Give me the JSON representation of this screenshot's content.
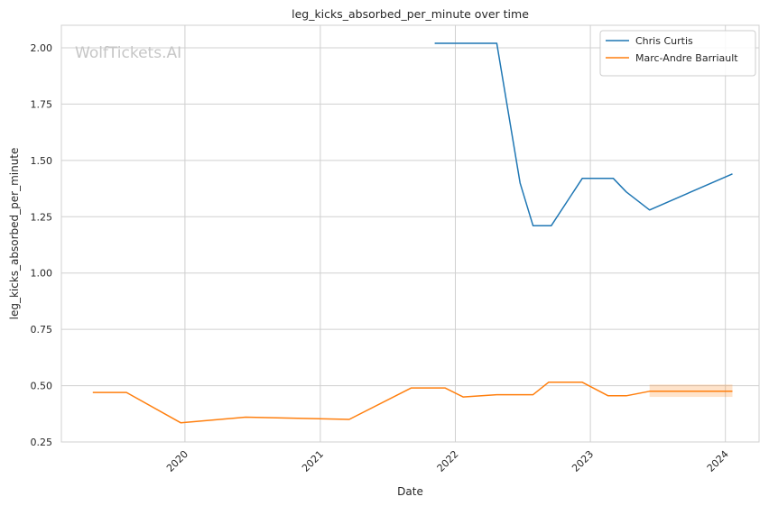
{
  "chart_data": {
    "type": "line",
    "title": "leg_kicks_absorbed_per_minute over time",
    "xlabel": "Date",
    "ylabel": "leg_kicks_absorbed_per_minute",
    "watermark": "WolfTickets.AI",
    "xlim": [
      "2019-02-01",
      "2024-04-01"
    ],
    "ylim": [
      0.25,
      2.1
    ],
    "x_ticks": [
      {
        "date": "2020-01-01",
        "label": "2020"
      },
      {
        "date": "2021-01-01",
        "label": "2021"
      },
      {
        "date": "2022-01-01",
        "label": "2022"
      },
      {
        "date": "2023-01-01",
        "label": "2023"
      },
      {
        "date": "2024-01-01",
        "label": "2024"
      }
    ],
    "y_ticks": [
      0.25,
      0.5,
      0.75,
      1.0,
      1.25,
      1.5,
      1.75,
      2.0
    ],
    "y_tick_labels": [
      "0.25",
      "0.50",
      "0.75",
      "1.00",
      "1.25",
      "1.50",
      "1.75",
      "2.00"
    ],
    "grid": true,
    "legend_position": "top-right",
    "series": [
      {
        "name": "Chris Curtis",
        "color": "#1f77b4",
        "points": [
          {
            "x": "2021-11-06",
            "y": 2.02
          },
          {
            "x": "2022-04-23",
            "y": 2.02
          },
          {
            "x": "2022-06-25",
            "y": 1.4
          },
          {
            "x": "2022-07-30",
            "y": 1.21
          },
          {
            "x": "2022-09-17",
            "y": 1.21
          },
          {
            "x": "2022-12-10",
            "y": 1.42
          },
          {
            "x": "2023-03-04",
            "y": 1.42
          },
          {
            "x": "2023-04-08",
            "y": 1.36
          },
          {
            "x": "2023-06-10",
            "y": 1.28
          },
          {
            "x": "2024-01-20",
            "y": 1.44
          }
        ]
      },
      {
        "name": "Marc-Andre Barriault",
        "color": "#ff7f0e",
        "points": [
          {
            "x": "2019-04-27",
            "y": 0.47
          },
          {
            "x": "2019-07-27",
            "y": 0.47
          },
          {
            "x": "2019-12-21",
            "y": 0.335
          },
          {
            "x": "2020-06-13",
            "y": 0.36
          },
          {
            "x": "2021-03-20",
            "y": 0.35
          },
          {
            "x": "2021-09-04",
            "y": 0.49
          },
          {
            "x": "2021-12-04",
            "y": 0.49
          },
          {
            "x": "2022-01-22",
            "y": 0.45
          },
          {
            "x": "2022-04-23",
            "y": 0.46
          },
          {
            "x": "2022-07-30",
            "y": 0.46
          },
          {
            "x": "2022-09-10",
            "y": 0.515
          },
          {
            "x": "2022-12-10",
            "y": 0.515
          },
          {
            "x": "2023-02-18",
            "y": 0.455
          },
          {
            "x": "2023-04-08",
            "y": 0.455
          },
          {
            "x": "2023-06-10",
            "y": 0.475
          },
          {
            "x": "2024-01-20",
            "y": 0.475
          }
        ],
        "band": {
          "x_start": "2023-06-10",
          "x_end": "2024-01-20",
          "y_low": 0.45,
          "y_high": 0.505
        }
      }
    ]
  }
}
